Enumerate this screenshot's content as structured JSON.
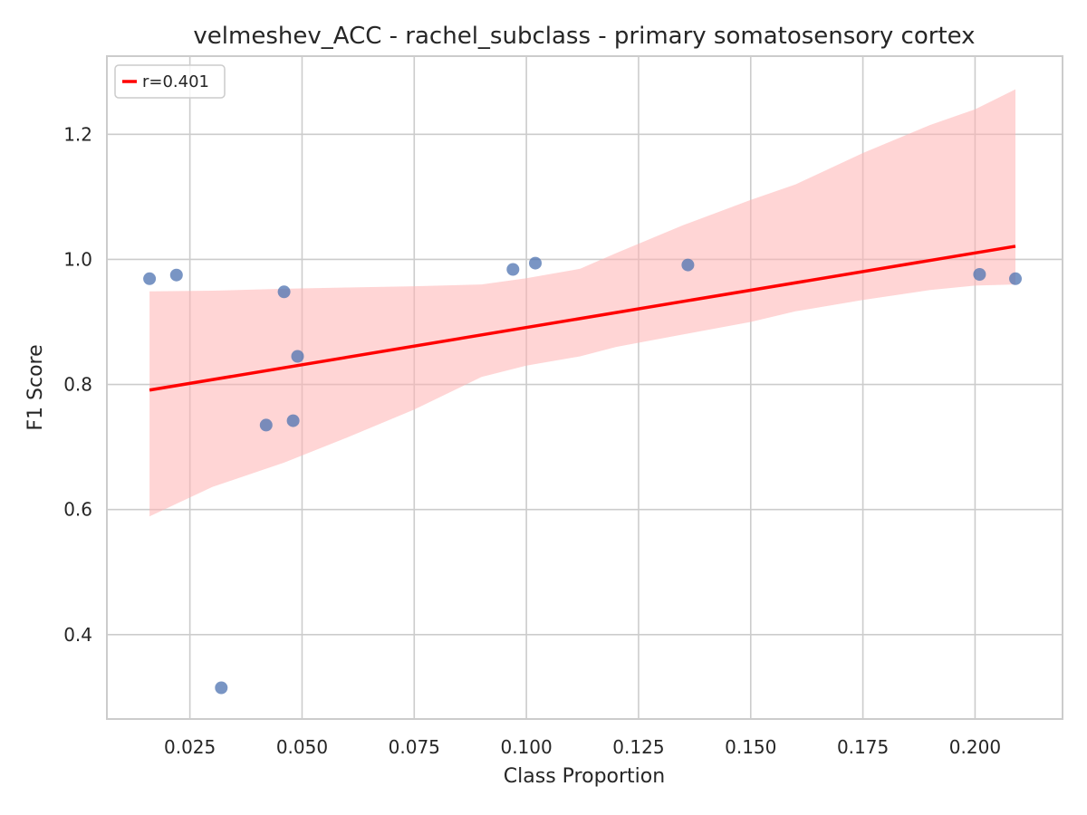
{
  "chart_data": {
    "type": "scatter",
    "title": "velmeshev_ACC - rachel_subclass - primary somatosensory cortex",
    "xlabel": "Class Proportion",
    "ylabel": "F1 Score",
    "xlim": [
      0.0065,
      0.2195
    ],
    "ylim": [
      0.265,
      1.325
    ],
    "xticks": [
      0.025,
      0.05,
      0.075,
      0.1,
      0.125,
      0.15,
      0.175,
      0.2
    ],
    "xtick_labels": [
      "0.025",
      "0.050",
      "0.075",
      "0.100",
      "0.125",
      "0.150",
      "0.175",
      "0.200"
    ],
    "yticks": [
      0.4,
      0.6,
      0.8,
      1.0,
      1.2
    ],
    "ytick_labels": [
      "0.4",
      "0.6",
      "0.8",
      "1.0",
      "1.2"
    ],
    "grid": true,
    "legend_position": "top-left",
    "points": {
      "color": "#4c72b0",
      "x": [
        0.016,
        0.022,
        0.032,
        0.042,
        0.046,
        0.048,
        0.049,
        0.097,
        0.102,
        0.136,
        0.201,
        0.209
      ],
      "y": [
        0.969,
        0.975,
        0.315,
        0.735,
        0.948,
        0.742,
        0.845,
        0.984,
        0.994,
        0.991,
        0.976,
        0.969
      ]
    },
    "fit_line": {
      "name": "r=0.401",
      "color": "#ff0000",
      "x": [
        0.016,
        0.209
      ],
      "y": [
        0.791,
        1.021
      ]
    },
    "confidence_band": {
      "color": "#ffb3b3",
      "x": [
        0.016,
        0.03,
        0.046,
        0.06,
        0.075,
        0.09,
        0.1,
        0.112,
        0.12,
        0.135,
        0.15,
        0.16,
        0.175,
        0.19,
        0.2,
        0.209
      ],
      "upper": [
        0.949,
        0.95,
        0.953,
        0.955,
        0.957,
        0.96,
        0.97,
        0.985,
        1.01,
        1.055,
        1.095,
        1.12,
        1.17,
        1.215,
        1.24,
        1.272
      ],
      "lower": [
        0.589,
        0.636,
        0.675,
        0.715,
        0.76,
        0.812,
        0.83,
        0.845,
        0.86,
        0.88,
        0.9,
        0.917,
        0.935,
        0.951,
        0.958,
        0.96
      ]
    }
  }
}
